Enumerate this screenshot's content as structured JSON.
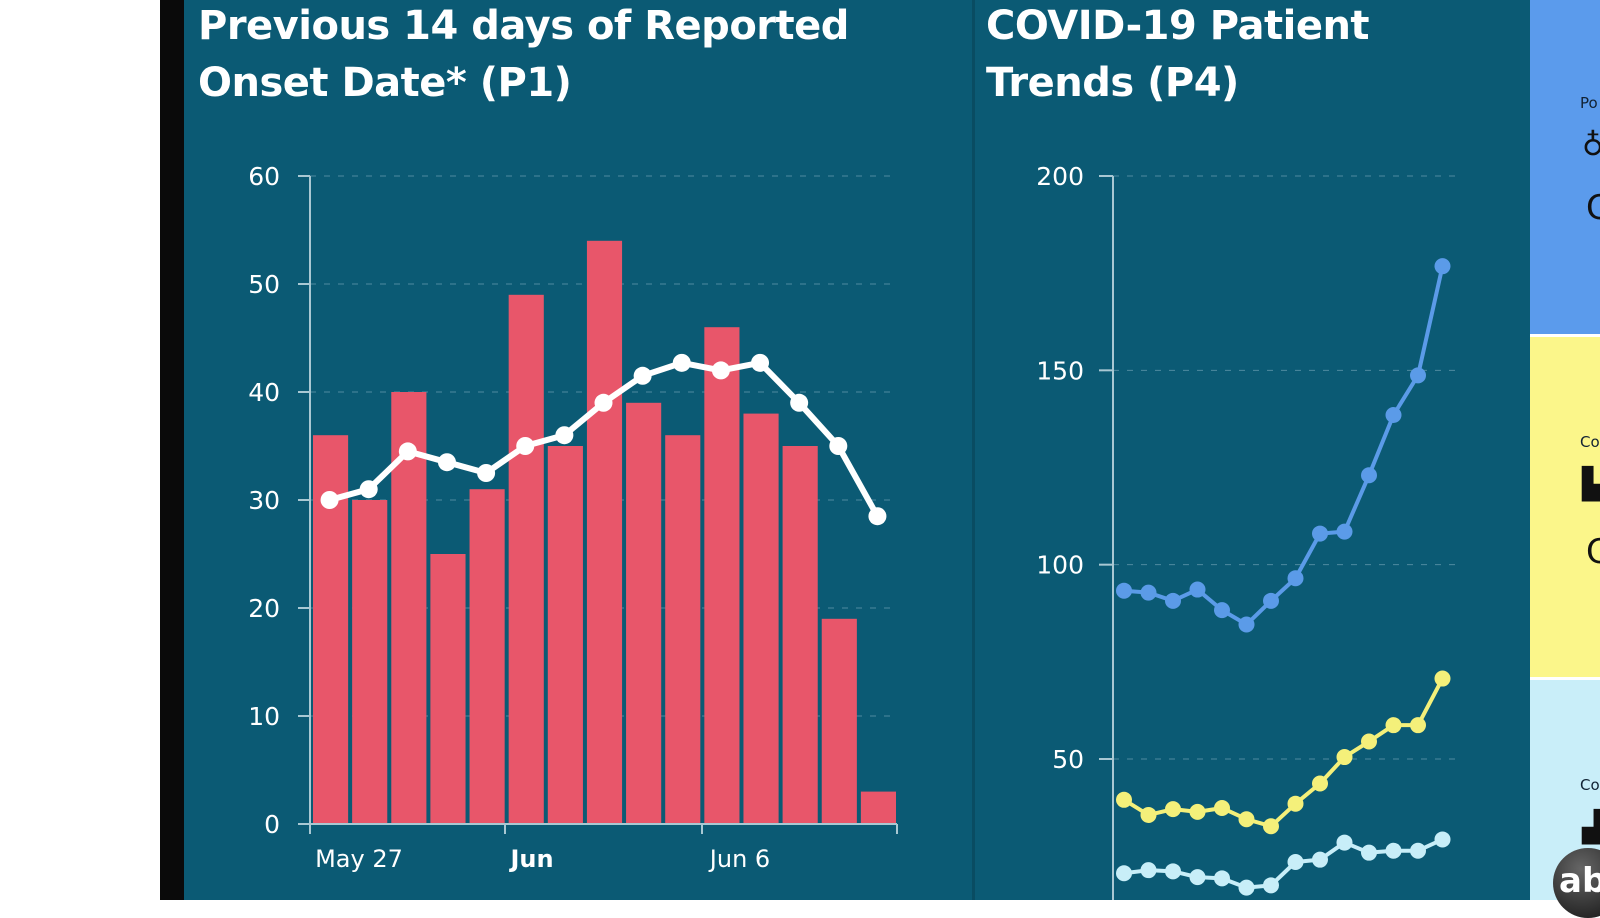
{
  "left_panel": {
    "title": "Previous 14 days of Reported Onset Date* (P1)"
  },
  "right_panel": {
    "title": "COVID-19 Patient Trends (P4)"
  },
  "side_strip": {
    "cards": [
      {
        "label": "Po",
        "value": "C",
        "color": "#5b9bec",
        "icon": "stethoscope-icon"
      },
      {
        "label": "Co",
        "value": "C",
        "color": "#fbf68a",
        "icon": "hospital-bed-icon"
      },
      {
        "label": "Co",
        "value": "",
        "color": "#c9eef9",
        "icon": "ventilator-icon"
      }
    ],
    "logo": "abc"
  },
  "chart_data": [
    {
      "type": "bar",
      "title": "Previous 14 days of Reported Onset Date* (P1)",
      "ylim": [
        0,
        60
      ],
      "yticks": [
        "0",
        "10",
        "20",
        "30",
        "40",
        "50",
        "60"
      ],
      "xtick_labels": [
        {
          "label": "May 27",
          "bold": false
        },
        {
          "label": "Jun",
          "bold": true
        },
        {
          "label": "Jun 6",
          "bold": false
        }
      ],
      "grid": true,
      "bar_color": "#e8566a",
      "line_color": "#ffffff",
      "bars": [
        36,
        30,
        40,
        25,
        31,
        49,
        35,
        54,
        39,
        36,
        46,
        38,
        35,
        19,
        3
      ],
      "line": [
        30,
        31,
        34.5,
        33.5,
        32.5,
        35,
        36,
        39,
        41.5,
        42.7,
        42,
        42.7,
        39,
        35,
        28.5
      ]
    },
    {
      "type": "line",
      "title": "COVID-19 Patient Trends (P4)",
      "ylim": [
        0,
        200
      ],
      "yticks": [
        "50",
        "100",
        "150",
        "200"
      ],
      "grid": true,
      "series": [
        {
          "color": "#5b9be8",
          "values": [
            93.3,
            92.8,
            90.7,
            93.6,
            88.3,
            84.6,
            90.7,
            96.5,
            108,
            108.5,
            123,
            138.5,
            148.7,
            176.8
          ]
        },
        {
          "color": "#f4f07a",
          "values": [
            39.5,
            35.6,
            37.1,
            36.4,
            37.4,
            34.5,
            32.7,
            38.5,
            43.7,
            50.5,
            54.5,
            58.7,
            58.7,
            70.7
          ]
        },
        {
          "color": "#c8eef8",
          "values": [
            20.6,
            21.4,
            21.1,
            19.6,
            19.3,
            16.9,
            17.5,
            23.5,
            24.1,
            28.5,
            25.9,
            26.4,
            26.4,
            29.3
          ]
        }
      ]
    }
  ]
}
